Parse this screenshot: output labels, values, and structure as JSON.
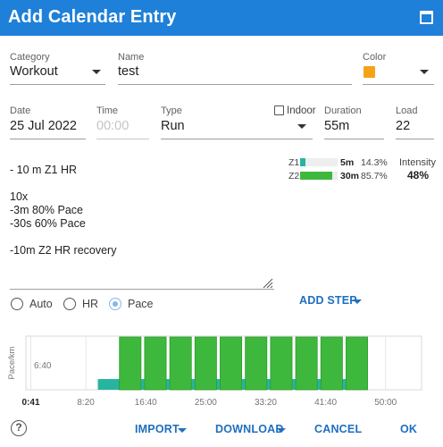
{
  "dialog": {
    "title": "Add Calendar Entry"
  },
  "fields": {
    "category": {
      "label": "Category",
      "value": "Workout"
    },
    "name": {
      "label": "Name",
      "value": "test"
    },
    "color": {
      "label": "Color",
      "value": "#f5a316"
    },
    "date": {
      "label": "Date",
      "value": "25 Jul 2022"
    },
    "time": {
      "label": "Time",
      "placeholder": "00:00"
    },
    "type": {
      "label": "Type",
      "value": "Run"
    },
    "indoor": {
      "label": "Indoor",
      "checked": false
    },
    "duration": {
      "label": "Duration",
      "value": "55m"
    },
    "load": {
      "label": "Load",
      "value": "22"
    }
  },
  "notes": {
    "lines": [
      "- 10 m Z1 HR",
      "",
      "10x",
      "-3m 80% Pace",
      "-30s 60% Pace",
      "",
      "-10m Z2 HR recovery"
    ]
  },
  "zones": [
    {
      "name": "Z1",
      "duration": "5m",
      "percent": "14.3%",
      "fraction": 0.143,
      "color": "#27b5a0"
    },
    {
      "name": "Z2",
      "duration": "30m",
      "percent": "85.7%",
      "fraction": 0.857,
      "color": "#3db83d"
    }
  ],
  "intensity": {
    "label": "Intensity",
    "value": "48%"
  },
  "target_modes": {
    "options": [
      "Auto",
      "HR",
      "Pace"
    ],
    "selected": "Pace"
  },
  "buttons": {
    "add_step": "ADD STEP",
    "import": "IMPORT",
    "download": "DOWNLOAD",
    "cancel": "CANCEL",
    "ok": "OK"
  },
  "chart_data": {
    "type": "bar",
    "ylabel": "Pace/km",
    "y_tick_labels": [
      "6:40"
    ],
    "x_tick_labels": [
      "0:41",
      "8:20",
      "16:40",
      "25:00",
      "33:20",
      "41:40",
      "50:00"
    ],
    "x_tick_minutes": [
      0.683,
      8.333,
      16.667,
      25,
      33.333,
      41.667,
      50
    ],
    "xlim_minutes": [
      0,
      55
    ],
    "series": [
      {
        "name": "warmup",
        "color": "#27b5a0",
        "level": "low",
        "intervals_minutes": [
          [
            10,
            45
          ]
        ]
      },
      {
        "name": "work",
        "color": "#3db83d",
        "level": "high",
        "intervals_minutes": [
          [
            13,
            16
          ],
          [
            16.5,
            19.5
          ],
          [
            20,
            23
          ],
          [
            23.5,
            26.5
          ],
          [
            27,
            30
          ],
          [
            30.5,
            33.5
          ],
          [
            34,
            37
          ],
          [
            37.5,
            40.5
          ],
          [
            41,
            44
          ],
          [
            44.5,
            47.5
          ]
        ]
      }
    ]
  },
  "help": {
    "symbol": "?"
  }
}
